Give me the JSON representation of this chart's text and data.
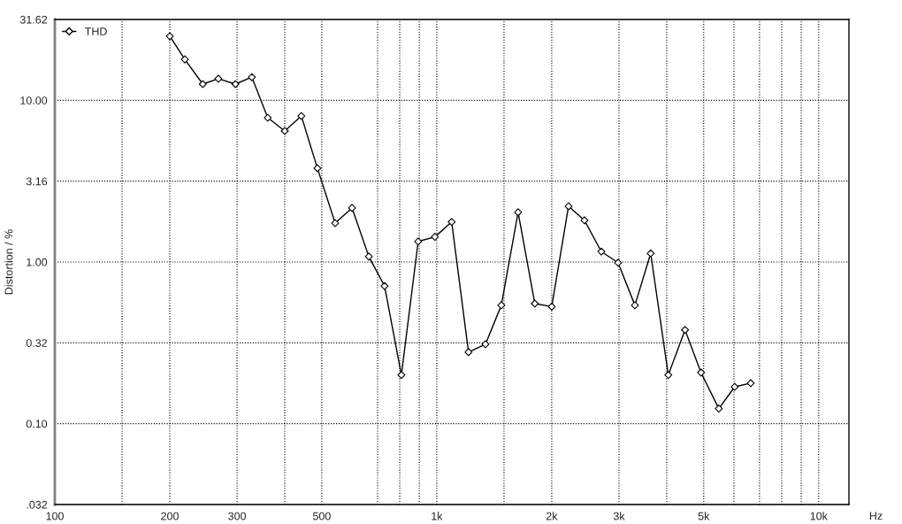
{
  "chart_data": {
    "type": "line",
    "xlabel": "Hz",
    "ylabel": "Distortion / %",
    "log": "xy",
    "grid": true,
    "legend": "top left",
    "marker": "diamond",
    "line_style": "solid",
    "xlim": [
      100,
      12000
    ],
    "ylim": [
      0.03162,
      31.62
    ],
    "xticks": [
      100,
      {
        "value": 150,
        "label": null
      },
      200,
      300,
      {
        "value": 400,
        "label": null
      },
      500,
      {
        "value": 700,
        "label": null
      },
      {
        "value": 800,
        "label": null
      },
      {
        "value": 900,
        "label": null
      },
      {
        "value": 1000,
        "label": "1k"
      },
      {
        "value": 1500,
        "label": null
      },
      {
        "value": 2000,
        "label": "2k"
      },
      {
        "value": 3000,
        "label": "3k"
      },
      {
        "value": 4000,
        "label": null
      },
      {
        "value": 5000,
        "label": "5k"
      },
      {
        "value": 6000,
        "label": null
      },
      {
        "value": 7000,
        "label": null
      },
      {
        "value": 8000,
        "label": null
      },
      {
        "value": 9000,
        "label": null
      },
      {
        "value": 10000,
        "label": "10k"
      }
    ],
    "yticks": [
      {
        "value": 0.03162,
        "label": ".032"
      },
      {
        "value": 0.1,
        "label": "0.10"
      },
      {
        "value": 0.3162,
        "label": "0.32"
      },
      {
        "value": 1,
        "label": "1.00"
      },
      {
        "value": 3.162,
        "label": "3.16"
      },
      {
        "value": 10,
        "label": "10.00"
      },
      {
        "value": 31.62,
        "label": "31.62"
      }
    ],
    "series": [
      {
        "name": "THD",
        "color": "#000000",
        "x": [
          200,
          219,
          244,
          268,
          297,
          328,
          361,
          400,
          442,
          487,
          542,
          600,
          664,
          730,
          808,
          894,
          989,
          1094,
          1211,
          1341,
          1476,
          1633,
          1806,
          2000,
          2213,
          2436,
          2697,
          2983,
          3302,
          3632,
          4038,
          4467,
          4920,
          5476,
          6026,
          6637
        ],
        "values": [
          24.9,
          17.9,
          12.6,
          13.6,
          12.6,
          13.9,
          7.8,
          6.46,
          8.0,
          3.8,
          1.74,
          2.16,
          1.08,
          0.71,
          0.2,
          1.34,
          1.43,
          1.77,
          0.277,
          0.31,
          0.54,
          2.03,
          0.553,
          0.53,
          2.21,
          1.81,
          1.16,
          0.99,
          0.54,
          1.13,
          0.2,
          0.38,
          0.207,
          0.124,
          0.169,
          0.178
        ]
      }
    ]
  }
}
